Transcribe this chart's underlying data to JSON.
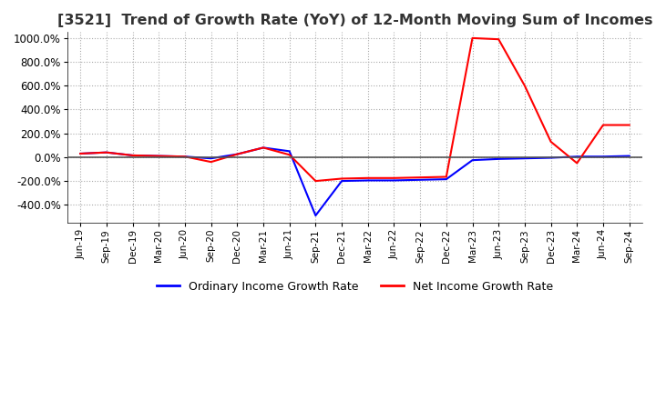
{
  "title": "[3521]  Trend of Growth Rate (YoY) of 12-Month Moving Sum of Incomes",
  "title_fontsize": 11.5,
  "ylim": [
    -550,
    1050
  ],
  "yticks": [
    -400,
    -200,
    0,
    200,
    400,
    600,
    800,
    1000
  ],
  "ytick_labels": [
    "-400.0%",
    "-200.0%",
    "0.0%",
    "200.0%",
    "400.0%",
    "600.0%",
    "800.0%",
    "1000.0%"
  ],
  "x_labels": [
    "Jun-19",
    "Sep-19",
    "Dec-19",
    "Mar-20",
    "Jun-20",
    "Sep-20",
    "Dec-20",
    "Mar-21",
    "Jun-21",
    "Sep-21",
    "Dec-21",
    "Mar-22",
    "Jun-22",
    "Sep-22",
    "Dec-22",
    "Mar-23",
    "Jun-23",
    "Sep-23",
    "Dec-23",
    "Mar-24",
    "Jun-24",
    "Sep-24"
  ],
  "ordinary_income_gr": [
    30,
    40,
    15,
    10,
    5,
    -10,
    25,
    80,
    50,
    -490,
    -200,
    -195,
    -195,
    -190,
    -185,
    -25,
    -15,
    -10,
    -5,
    5,
    5,
    10
  ],
  "net_income_gr": [
    30,
    40,
    15,
    10,
    5,
    -40,
    25,
    80,
    20,
    -200,
    -180,
    -175,
    -175,
    -170,
    -165,
    1000,
    990,
    600,
    130,
    -50,
    270,
    270
  ],
  "ordinary_color": "#0000FF",
  "net_color": "#FF0000",
  "line_width": 1.5,
  "background_color": "#FFFFFF",
  "plot_background": "#FFFFFF",
  "legend_labels": [
    "Ordinary Income Growth Rate",
    "Net Income Growth Rate"
  ],
  "grid_color": "#CCCCCC",
  "title_color": "#333333"
}
